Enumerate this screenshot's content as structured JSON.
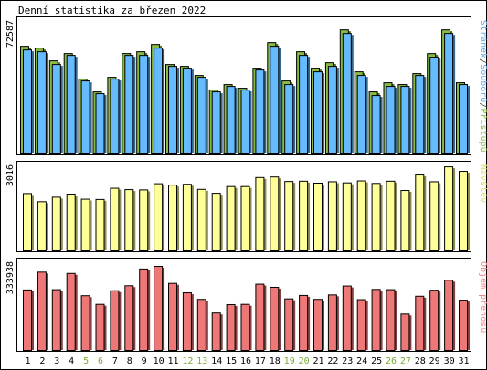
{
  "title": "Denní statistika za březen 2022",
  "chart_data": {
    "type": "bar",
    "title": "Denní statistika za březen 2022",
    "categories": [
      "1",
      "2",
      "3",
      "4",
      "5",
      "6",
      "7",
      "8",
      "9",
      "10",
      "11",
      "12",
      "13",
      "14",
      "15",
      "16",
      "17",
      "18",
      "19",
      "20",
      "21",
      "22",
      "23",
      "24",
      "25",
      "26",
      "27",
      "28",
      "29",
      "30",
      "31"
    ],
    "weekend_days": [
      "5",
      "6",
      "12",
      "13",
      "19",
      "20",
      "26",
      "27"
    ],
    "panels": [
      {
        "ylabel_parts": [
          {
            "text": "Stránek",
            "color": "#66aaee"
          },
          {
            "text": "/",
            "color": "#444444"
          },
          {
            "text": "Souborů",
            "color": "#66aaee"
          },
          {
            "text": "/",
            "color": "#444444"
          },
          {
            "text": "Přístupů",
            "color": "#88bb44"
          }
        ],
        "ymax_label": "72587",
        "ylim": [
          0,
          72587
        ],
        "series": [
          {
            "name": "Přístupů",
            "color": "#88bb44",
            "values": [
              59000,
              58000,
              51000,
              55000,
              41000,
              34000,
              42000,
              55000,
              56000,
              60000,
              49000,
              48000,
              43000,
              35000,
              38000,
              36000,
              47000,
              61000,
              40000,
              56000,
              47000,
              50000,
              68000,
              45000,
              34000,
              39000,
              38000,
              44000,
              55000,
              68000,
              39000
            ]
          },
          {
            "name": "Souborů",
            "color": "#66bbff",
            "values": [
              57000,
              56000,
              49000,
              54000,
              40000,
              33000,
              41000,
              54000,
              54000,
              58000,
              48000,
              47000,
              42000,
              34000,
              37000,
              35000,
              46000,
              59000,
              38000,
              54000,
              45000,
              48000,
              66000,
              43000,
              32000,
              37000,
              37000,
              43000,
              53000,
              66000,
              38000
            ]
          }
        ]
      },
      {
        "ylabel_parts": [
          {
            "text": "Návštěv",
            "color": "#dddd66"
          }
        ],
        "ymax_label": "3016",
        "ylim": [
          0,
          3016
        ],
        "series": [
          {
            "name": "Návštěv",
            "color": "#ffff99",
            "values": [
              2030,
              1740,
              1900,
              2010,
              1830,
              1820,
              2220,
              2170,
              2160,
              2380,
              2330,
              2360,
              2180,
              2040,
              2280,
              2280,
              2600,
              2620,
              2460,
              2470,
              2400,
              2450,
              2410,
              2480,
              2390,
              2470,
              2140,
              2690,
              2450,
              2980,
              2820
            ]
          }
        ]
      },
      {
        "ylabel_parts": [
          {
            "text": "Objem přenosu",
            "color": "#ee8888"
          }
        ],
        "ymax_label": "333938",
        "ylim": [
          0,
          333938
        ],
        "series": [
          {
            "name": "Objem přenosu",
            "color": "#ee7777",
            "values": [
              230000,
              298000,
              231000,
              293000,
              208000,
              175000,
              227000,
              246000,
              310000,
              320000,
              255000,
              219000,
              194000,
              142000,
              174000,
              175000,
              252000,
              240000,
              196000,
              209000,
              194000,
              211000,
              245000,
              193000,
              232000,
              231000,
              138000,
              206000,
              229000,
              267000,
              191000
            ]
          }
        ]
      }
    ]
  }
}
